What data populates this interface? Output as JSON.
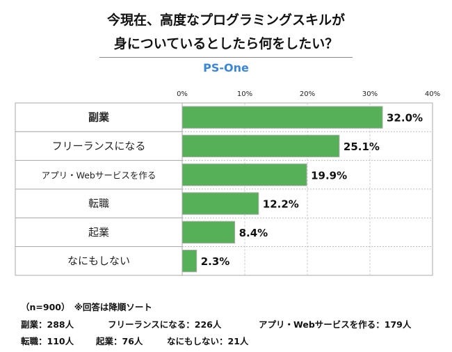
{
  "title_lines": [
    "今現在、高度なプログラミングスキルが",
    "身についているとしたら何をしたい？"
  ],
  "brand": "PS-One",
  "colors": {
    "bar": "#55b057",
    "brand": "#3a86d8"
  },
  "chart_data": {
    "type": "bar",
    "orientation": "horizontal",
    "categories": [
      "副業",
      "フリーランスになる",
      "アプリ・Webサービスを作る",
      "転職",
      "起業",
      "なにもしない"
    ],
    "values": [
      32.0,
      25.1,
      19.9,
      12.2,
      8.4,
      2.3
    ],
    "data_labels": [
      "32.0%",
      "25.1%",
      "19.9%",
      "12.2%",
      "8.4%",
      "2.3%"
    ],
    "xlim": [
      0,
      40
    ],
    "x_ticks": [
      "0%",
      "10%",
      "20%",
      "30%",
      "40%"
    ],
    "grid": true,
    "legend": "none"
  },
  "notes": {
    "line1": "（n=900）　※回答は降順ソート",
    "line2": [
      "副業：288人",
      "フリーランスになる：226人",
      "アプリ・Webサービスを作る：179人"
    ],
    "line3": [
      "転職：110人",
      "起業：76人",
      "なにもしない：21人"
    ]
  }
}
